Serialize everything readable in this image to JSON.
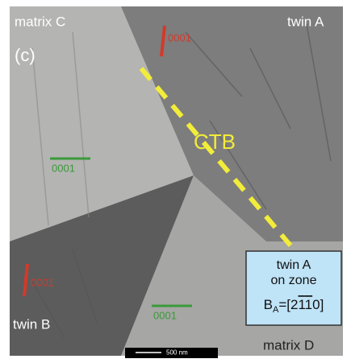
{
  "panel_label": "(c)",
  "regions": {
    "top_left": "matrix C",
    "top_right": "twin A",
    "bottom_left": "twin B",
    "bottom_right": "matrix D"
  },
  "boundary_label": "CTB",
  "directions": {
    "twin_a": "0001",
    "matrix_c": "0001",
    "twin_b": "0001",
    "matrix_d": "0001"
  },
  "zone_box": {
    "line1": "twin A",
    "line2": "on zone",
    "symbol": "B",
    "subscript": "A",
    "open": "=[2",
    "bar_digit_1": "1",
    "bar_digit_2": "1",
    "close": "0]"
  },
  "scale_bar": "500 nm"
}
